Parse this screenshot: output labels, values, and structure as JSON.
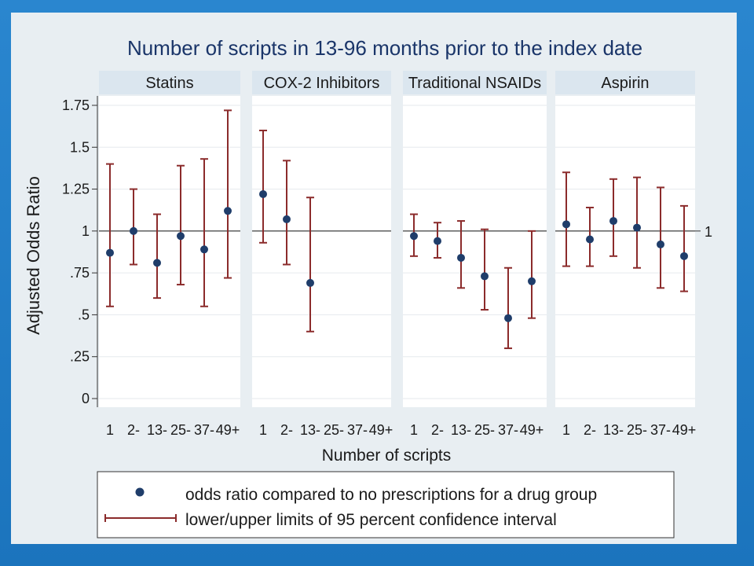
{
  "chart_data": {
    "type": "scatter",
    "title": "Number of scripts in 13-96 months prior to the index date",
    "xlabel": "Number of scripts",
    "ylabel": "Adjusted Odds Ratio",
    "ylim": [
      0,
      1.8
    ],
    "yticks": [
      {
        "value": 0,
        "label": "0"
      },
      {
        "value": 0.25,
        "label": ".25"
      },
      {
        "value": 0.5,
        "label": ".5"
      },
      {
        "value": 0.75,
        "label": ".75"
      },
      {
        "value": 1,
        "label": "1"
      },
      {
        "value": 1.25,
        "label": "1.25"
      },
      {
        "value": 1.5,
        "label": "1.5"
      },
      {
        "value": 1.75,
        "label": "1.75"
      }
    ],
    "grid": true,
    "reference_line": {
      "value": 1,
      "label": "1"
    },
    "categories": [
      "1",
      "2-",
      "13-",
      "25-",
      "37-",
      "49+"
    ],
    "panels": [
      {
        "name": "Statins",
        "estimates": [
          0.87,
          1.0,
          0.81,
          0.97,
          0.89,
          1.12
        ],
        "lower": [
          0.55,
          0.8,
          0.6,
          0.68,
          0.55,
          0.72
        ],
        "upper": [
          1.4,
          1.25,
          1.1,
          1.39,
          1.43,
          1.72
        ]
      },
      {
        "name": "COX-2 Inhibitors",
        "estimates": [
          1.22,
          1.07,
          0.69,
          null,
          null,
          null
        ],
        "lower": [
          0.93,
          0.8,
          0.4,
          null,
          null,
          null
        ],
        "upper": [
          1.6,
          1.42,
          1.2,
          null,
          null,
          null
        ]
      },
      {
        "name": "Traditional NSAIDs",
        "estimates": [
          0.97,
          0.94,
          0.84,
          0.73,
          0.48,
          0.7
        ],
        "lower": [
          0.85,
          0.84,
          0.66,
          0.53,
          0.3,
          0.48
        ],
        "upper": [
          1.1,
          1.05,
          1.06,
          1.01,
          0.78,
          1.0
        ]
      },
      {
        "name": "Aspirin",
        "estimates": [
          1.04,
          0.95,
          1.06,
          1.02,
          0.92,
          0.85
        ],
        "lower": [
          0.79,
          0.79,
          0.85,
          0.78,
          0.66,
          0.64
        ],
        "upper": [
          1.35,
          1.14,
          1.31,
          1.32,
          1.26,
          1.15
        ]
      }
    ],
    "legend": {
      "placement": "bottom",
      "entries": [
        {
          "marker": "dot",
          "label": "odds ratio compared to no prescriptions for a drug group"
        },
        {
          "marker": "error-bar",
          "label": "lower/upper limits of 95 percent confidence interval"
        }
      ]
    },
    "colors": {
      "marker": "#1f3d6a",
      "error_bar": "#8b2b2b",
      "panel_header": "#dbe6ef",
      "plot_background": "#ffffff",
      "figure_background": "#e8eef2",
      "grid": "#e6eaee",
      "slide_background": "#1e7bc1"
    }
  }
}
